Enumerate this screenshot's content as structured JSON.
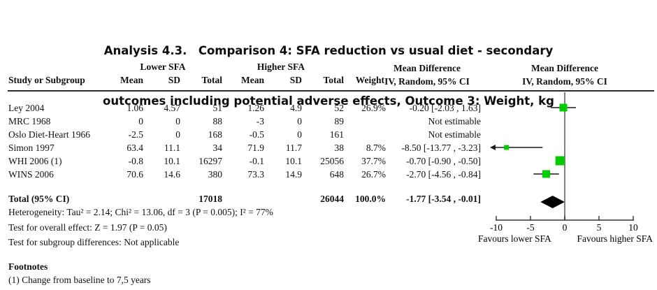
{
  "header": {
    "title_line1": "Analysis 4.3.  Comparison 4: SFA reduction vs usual diet - secondary",
    "title_line2": "outcomes including potential adverse effects, Outcome 3: Weight, kg"
  },
  "table": {
    "group_headers": {
      "lower": "Lower SFA",
      "higher": "Higher SFA"
    },
    "col_headers": {
      "study": "Study or Subgroup",
      "mean": "Mean",
      "sd": "SD",
      "total": "Total",
      "weight": "Weight",
      "md_text_line1": "Mean Difference",
      "md_text_line2": "IV, Random, 95% CI",
      "md_plot_line1": "Mean Difference",
      "md_plot_line2": "IV, Random, 95% CI"
    },
    "rows": [
      {
        "study": "Ley 2004",
        "mean1": "1.06",
        "sd1": "4.57",
        "total1": "51",
        "mean2": "1.26",
        "sd2": "4.9",
        "total2": "52",
        "weight": "26.9%",
        "ci": "-0.20 [-2.03 , 1.63]"
      },
      {
        "study": "MRC 1968",
        "mean1": "0",
        "sd1": "0",
        "total1": "88",
        "mean2": "-3",
        "sd2": "0",
        "total2": "89",
        "weight": "",
        "ci": "Not estimable"
      },
      {
        "study": "Oslo Diet-Heart 1966",
        "mean1": "-2.5",
        "sd1": "0",
        "total1": "168",
        "mean2": "-0.5",
        "sd2": "0",
        "total2": "161",
        "weight": "",
        "ci": "Not estimable"
      },
      {
        "study": "Simon 1997",
        "mean1": "63.4",
        "sd1": "11.1",
        "total1": "34",
        "mean2": "71.9",
        "sd2": "11.7",
        "total2": "38",
        "weight": "8.7%",
        "ci": "-8.50 [-13.77 , -3.23]"
      },
      {
        "study": "WHI 2006 (1)",
        "mean1": "-0.8",
        "sd1": "10.1",
        "total1": "16297",
        "mean2": "-0.1",
        "sd2": "10.1",
        "total2": "25056",
        "weight": "37.7%",
        "ci": "-0.70 [-0.90 , -0.50]"
      },
      {
        "study": "WINS 2006",
        "mean1": "70.6",
        "sd1": "14.6",
        "total1": "380",
        "mean2": "73.3",
        "sd2": "14.9",
        "total2": "648",
        "weight": "26.7%",
        "ci": "-2.70 [-4.56 , -0.84]"
      }
    ],
    "total_row": {
      "label": "Total (95% CI)",
      "total1": "17018",
      "total2": "26044",
      "weight": "100.0%",
      "ci": "-1.77 [-3.54 , -0.01]"
    }
  },
  "stats": {
    "heterogeneity": "Heterogeneity: Tau² = 2.14; Chi² = 13.06, df = 3 (P = 0.005); I² = 77%",
    "overall_effect": "Test for overall effect: Z = 1.97 (P = 0.05)",
    "subgroup_differences": "Test for subgroup differences: Not applicable"
  },
  "footnotes": {
    "heading": "Footnotes",
    "item1": "(1) Change from baseline to 7,5 years"
  },
  "chart_data": {
    "type": "forest",
    "effect_measure": "Mean Difference",
    "method": "IV, Random, 95% CI",
    "axis": {
      "min": -10,
      "max": 10,
      "ticks": [
        -10,
        -5,
        0,
        5,
        10
      ],
      "label_left": "Favours lower SFA",
      "label_right": "Favours higher SFA"
    },
    "studies": [
      {
        "name": "Ley 2004",
        "estimable": true,
        "md": -0.2,
        "ci_low": -2.03,
        "ci_high": 1.63,
        "weight_pct": 26.9
      },
      {
        "name": "MRC 1968",
        "estimable": false,
        "md": null,
        "ci_low": null,
        "ci_high": null,
        "weight_pct": null
      },
      {
        "name": "Oslo Diet-Heart 1966",
        "estimable": false,
        "md": null,
        "ci_low": null,
        "ci_high": null,
        "weight_pct": null
      },
      {
        "name": "Simon 1997",
        "estimable": true,
        "md": -8.5,
        "ci_low": -13.77,
        "ci_high": -3.23,
        "weight_pct": 8.7
      },
      {
        "name": "WHI 2006 (1)",
        "estimable": true,
        "md": -0.7,
        "ci_low": -0.9,
        "ci_high": -0.5,
        "weight_pct": 37.7
      },
      {
        "name": "WINS 2006",
        "estimable": true,
        "md": -2.7,
        "ci_low": -4.56,
        "ci_high": -0.84,
        "weight_pct": 26.7
      }
    ],
    "total": {
      "md": -1.77,
      "ci_low": -3.54,
      "ci_high": -0.01
    },
    "colors": {
      "square": "#00cc00",
      "diamond": "#000000",
      "zero_line": "#808080",
      "ci_line": "#1a1a1a",
      "axis": "#333333"
    }
  }
}
